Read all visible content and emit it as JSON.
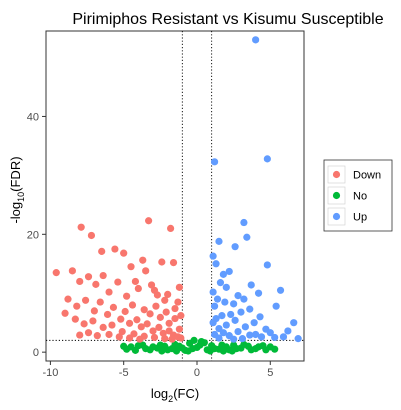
{
  "chart_data": {
    "type": "scatter",
    "title": "Pirimiphos Resistant vs Kisumu Susceptible",
    "xlabel": {
      "base": "log",
      "sub": "2",
      "suffix": "(FC)"
    },
    "ylabel": {
      "prefix": "-log",
      "sub": "10",
      "suffix": "(FDR)"
    },
    "xlim": [
      -10.3,
      7.3
    ],
    "ylim": [
      -1.5,
      54.5
    ],
    "xticks": [
      -10,
      -5,
      0,
      5
    ],
    "yticks": [
      0,
      20,
      40
    ],
    "vlines": [
      -1,
      1
    ],
    "hline": 2,
    "grid": false,
    "legend_position": "right",
    "legend": [
      {
        "label": "Down",
        "color": "#F8766D"
      },
      {
        "label": "No",
        "color": "#00BA38"
      },
      {
        "label": "Up",
        "color": "#619CFF"
      }
    ],
    "series": [
      {
        "name": "Down",
        "color": "#F8766D",
        "points": [
          [
            -9.6,
            13.5
          ],
          [
            -7.9,
            21.2
          ],
          [
            -7.2,
            19.8
          ],
          [
            -6.5,
            17.1
          ],
          [
            -5.6,
            17.5
          ],
          [
            -5.0,
            16.8
          ],
          [
            -4.5,
            14.5
          ],
          [
            -4.2,
            12.0
          ],
          [
            -3.7,
            15.6
          ],
          [
            -3.5,
            13.8
          ],
          [
            -3.3,
            22.3
          ],
          [
            -3.1,
            11.4
          ],
          [
            -2.9,
            10.5
          ],
          [
            -2.7,
            9.7
          ],
          [
            -2.4,
            15.3
          ],
          [
            -2.2,
            8.8
          ],
          [
            -2.0,
            9.8
          ],
          [
            -1.8,
            21.0
          ],
          [
            -1.6,
            15.2
          ],
          [
            -1.5,
            7.4
          ],
          [
            -1.3,
            8.5
          ],
          [
            -1.2,
            11.0
          ],
          [
            -1.1,
            6.2
          ],
          [
            -8.5,
            13.8
          ],
          [
            -8.0,
            12.0
          ],
          [
            -7.4,
            12.8
          ],
          [
            -6.9,
            11.5
          ],
          [
            -6.4,
            13.0
          ],
          [
            -6.0,
            10.2
          ],
          [
            -5.4,
            11.9
          ],
          [
            -4.8,
            9.5
          ],
          [
            -4.4,
            8.0
          ],
          [
            -4.0,
            10.8
          ],
          [
            -3.6,
            7.2
          ],
          [
            -3.2,
            6.5
          ],
          [
            -2.8,
            7.8
          ],
          [
            -2.5,
            5.9
          ],
          [
            -2.1,
            6.8
          ],
          [
            -1.9,
            4.9
          ],
          [
            -1.5,
            5.7
          ],
          [
            -1.2,
            3.9
          ],
          [
            -8.8,
            9.0
          ],
          [
            -8.2,
            7.8
          ],
          [
            -7.6,
            8.8
          ],
          [
            -7.0,
            7.0
          ],
          [
            -6.6,
            8.5
          ],
          [
            -6.1,
            6.4
          ],
          [
            -5.7,
            7.6
          ],
          [
            -5.2,
            5.6
          ],
          [
            -4.9,
            6.9
          ],
          [
            -4.6,
            4.9
          ],
          [
            -4.1,
            5.5
          ],
          [
            -3.8,
            4.3
          ],
          [
            -3.4,
            4.8
          ],
          [
            -3.0,
            3.6
          ],
          [
            -2.6,
            4.2
          ],
          [
            -2.3,
            3.2
          ],
          [
            -1.9,
            3.6
          ],
          [
            -1.6,
            2.9
          ],
          [
            -1.3,
            2.6
          ],
          [
            -9.0,
            6.6
          ],
          [
            -8.3,
            5.6
          ],
          [
            -7.7,
            4.8
          ],
          [
            -7.1,
            5.3
          ],
          [
            -6.4,
            4.2
          ],
          [
            -5.8,
            4.6
          ],
          [
            -5.1,
            3.5
          ],
          [
            -4.3,
            3.1
          ],
          [
            -3.6,
            2.7
          ],
          [
            -2.9,
            2.5
          ],
          [
            -2.2,
            2.3
          ],
          [
            -1.7,
            2.2
          ],
          [
            -1.1,
            2.4
          ],
          [
            -6.8,
            2.8
          ],
          [
            -6.0,
            3.0
          ],
          [
            -5.3,
            2.6
          ],
          [
            -4.6,
            2.4
          ],
          [
            -3.9,
            2.2
          ],
          [
            -7.4,
            3.3
          ],
          [
            -8.0,
            2.9
          ]
        ]
      },
      {
        "name": "No",
        "color": "#00BA38",
        "points": [
          [
            -5.0,
            1.0
          ],
          [
            -4.5,
            0.9
          ],
          [
            -4.0,
            1.1
          ],
          [
            -3.5,
            0.6
          ],
          [
            -3.0,
            0.9
          ],
          [
            -2.5,
            1.2
          ],
          [
            -2.0,
            0.4
          ],
          [
            -1.5,
            1.3
          ],
          [
            -1.0,
            0.7
          ],
          [
            -0.5,
            1.5
          ],
          [
            0.0,
            0.8
          ],
          [
            0.5,
            1.6
          ],
          [
            1.0,
            1.1
          ],
          [
            1.5,
            0.5
          ],
          [
            2.0,
            0.9
          ],
          [
            2.5,
            1.2
          ],
          [
            3.0,
            0.7
          ],
          [
            3.5,
            1.0
          ],
          [
            4.0,
            0.6
          ],
          [
            4.5,
            1.1
          ],
          [
            5.0,
            0.9
          ],
          [
            5.3,
            0.5
          ],
          [
            -4.8,
            0.5
          ],
          [
            -4.2,
            0.3
          ],
          [
            -3.7,
            1.2
          ],
          [
            -3.2,
            0.4
          ],
          [
            -2.7,
            0.7
          ],
          [
            -2.2,
            1.0
          ],
          [
            -1.7,
            0.6
          ],
          [
            -1.2,
            1.0
          ],
          [
            -0.8,
            0.3
          ],
          [
            -0.3,
            0.6
          ],
          [
            0.2,
            1.2
          ],
          [
            0.7,
            0.4
          ],
          [
            1.2,
            0.6
          ],
          [
            1.7,
            1.2
          ],
          [
            2.2,
            0.4
          ],
          [
            2.7,
            0.6
          ],
          [
            3.2,
            1.3
          ],
          [
            3.7,
            0.4
          ],
          [
            4.2,
            0.9
          ],
          [
            4.7,
            0.4
          ],
          [
            -0.2,
            2.0
          ],
          [
            0.3,
            1.8
          ],
          [
            -0.6,
            0.2
          ],
          [
            0.9,
            0.2
          ],
          [
            -1.4,
            0.2
          ],
          [
            1.8,
            0.2
          ],
          [
            -2.4,
            0.2
          ],
          [
            2.4,
            0.2
          ]
        ]
      },
      {
        "name": "Up",
        "color": "#619CFF",
        "points": [
          [
            4.0,
            53.0
          ],
          [
            4.8,
            32.8
          ],
          [
            1.2,
            32.3
          ],
          [
            3.2,
            22.0
          ],
          [
            3.4,
            19.5
          ],
          [
            1.5,
            18.8
          ],
          [
            2.6,
            17.9
          ],
          [
            1.1,
            16.3
          ],
          [
            1.3,
            15.0
          ],
          [
            4.8,
            14.8
          ],
          [
            1.8,
            13.2
          ],
          [
            2.2,
            13.7
          ],
          [
            3.7,
            11.4
          ],
          [
            1.6,
            11.8
          ],
          [
            2.0,
            11.0
          ],
          [
            1.1,
            10.2
          ],
          [
            2.8,
            9.6
          ],
          [
            3.2,
            9.0
          ],
          [
            1.4,
            9.0
          ],
          [
            4.2,
            10.0
          ],
          [
            5.7,
            10.5
          ],
          [
            2.5,
            8.2
          ],
          [
            1.9,
            8.5
          ],
          [
            1.2,
            7.8
          ],
          [
            3.6,
            7.3
          ],
          [
            5.4,
            7.8
          ],
          [
            2.3,
            6.4
          ],
          [
            3.0,
            6.8
          ],
          [
            1.7,
            6.2
          ],
          [
            1.3,
            5.7
          ],
          [
            4.3,
            6.0
          ],
          [
            2.6,
            5.4
          ],
          [
            3.9,
            5.0
          ],
          [
            1.1,
            5.0
          ],
          [
            2.0,
            4.6
          ],
          [
            1.5,
            4.0
          ],
          [
            3.3,
            4.3
          ],
          [
            4.7,
            3.9
          ],
          [
            2.8,
            3.5
          ],
          [
            1.8,
            3.3
          ],
          [
            1.2,
            3.0
          ],
          [
            2.2,
            2.8
          ],
          [
            3.6,
            2.9
          ],
          [
            4.4,
            2.6
          ],
          [
            5.3,
            2.5
          ],
          [
            6.6,
            5.0
          ],
          [
            6.2,
            3.6
          ],
          [
            5.9,
            2.6
          ],
          [
            6.9,
            2.3
          ],
          [
            3.1,
            2.3
          ],
          [
            1.5,
            2.4
          ],
          [
            2.5,
            2.2
          ],
          [
            5.0,
            3.3
          ],
          [
            4.0,
            3.0
          ]
        ]
      }
    ]
  }
}
